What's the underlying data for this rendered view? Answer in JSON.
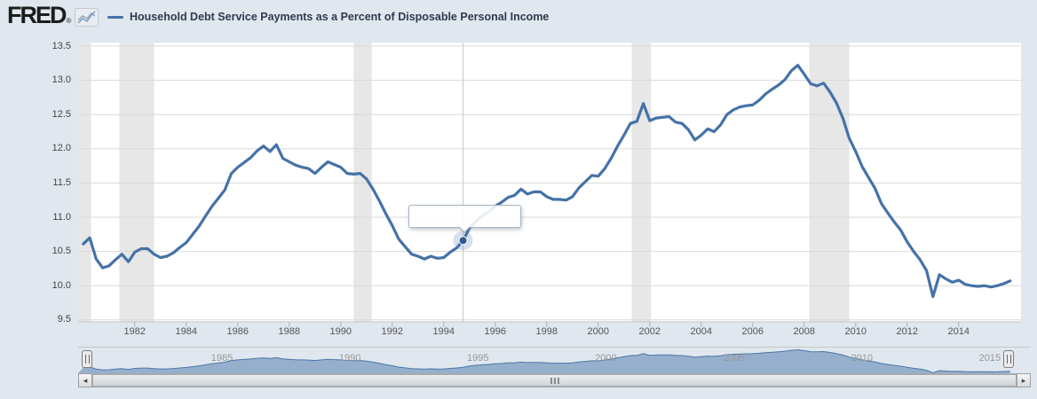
{
  "header": {
    "logo_text": "FRED",
    "registered_mark": "®",
    "sparkline_icon": "fred-graph-icon"
  },
  "legend": {
    "marker": "line-dash",
    "label": "Household Debt Service Payments as a Percent of Disposable Personal Income"
  },
  "colors": {
    "page_background": "#e0e7ee",
    "plot_background": "#ffffff",
    "series_line": "#4572a7",
    "gridline": "#d9d9d9",
    "recession_band": "#e7e7e7",
    "crosshair": "#c8c8c8",
    "marker_dot": "#2e5a8f",
    "marker_halo": "rgba(69,114,167,0.22)",
    "navigator_fill": "rgba(69,114,167,0.48)",
    "navigator_line": "#4a76a8",
    "axis_line": "#c2c6ca"
  },
  "tooltip": {
    "visible": true,
    "text": ""
  },
  "scrollbar": {
    "left_arrow": "◂",
    "right_arrow": "▸"
  },
  "chart_data": {
    "type": "line",
    "title": "Household Debt Service Payments as a Percent of Disposable Personal Income",
    "xlabel": "",
    "ylabel": "",
    "ylim": [
      9.5,
      13.5
    ],
    "grid": true,
    "legend_position": "top",
    "y_ticks": [
      "13.5",
      "13.0",
      "12.5",
      "12.0",
      "11.5",
      "11.0",
      "10.5",
      "10.0",
      "9.5"
    ],
    "y_tick_values": [
      13.5,
      13.0,
      12.5,
      12.0,
      11.5,
      11.0,
      10.5,
      10.0,
      9.5
    ],
    "x_ticks": [
      1982,
      1984,
      1986,
      1988,
      1990,
      1992,
      1994,
      1996,
      1998,
      2000,
      2002,
      2004,
      2006,
      2008,
      2010,
      2012,
      2014
    ],
    "navigator_ticks": [
      1985,
      1990,
      1995,
      2000,
      2005,
      2010,
      2015
    ],
    "frequency": "quarterly",
    "start_year": 1980,
    "recession_bands_years": [
      [
        1979.8,
        1980.3
      ],
      [
        1981.4,
        1982.75
      ],
      [
        1990.5,
        1991.2
      ],
      [
        2001.3,
        2002.05
      ],
      [
        2008.2,
        2009.75
      ]
    ],
    "highlight": {
      "year": 1994.75,
      "value": 10.66
    },
    "series": [
      {
        "name": "Household Debt Service Payments as a Percent of Disposable Personal Income",
        "values": [
          10.61,
          10.7,
          10.39,
          10.26,
          10.29,
          10.38,
          10.46,
          10.35,
          10.49,
          10.54,
          10.54,
          10.46,
          10.41,
          10.43,
          10.48,
          10.56,
          10.63,
          10.75,
          10.87,
          11.02,
          11.16,
          11.28,
          11.4,
          11.64,
          11.73,
          11.8,
          11.87,
          11.97,
          12.04,
          11.96,
          12.06,
          11.86,
          11.81,
          11.76,
          11.73,
          11.71,
          11.64,
          11.73,
          11.81,
          11.77,
          11.73,
          11.64,
          11.63,
          11.64,
          11.56,
          11.41,
          11.24,
          11.05,
          10.88,
          10.68,
          10.57,
          10.46,
          10.43,
          10.39,
          10.43,
          10.4,
          10.41,
          10.49,
          10.55,
          10.66,
          10.84,
          10.94,
          11.02,
          11.08,
          11.16,
          11.22,
          11.29,
          11.32,
          11.41,
          11.34,
          11.37,
          11.37,
          11.3,
          11.26,
          11.26,
          11.25,
          11.3,
          11.43,
          11.52,
          11.61,
          11.6,
          11.71,
          11.86,
          12.04,
          12.2,
          12.37,
          12.4,
          12.66,
          12.41,
          12.45,
          12.46,
          12.47,
          12.39,
          12.37,
          12.28,
          12.13,
          12.2,
          12.29,
          12.25,
          12.35,
          12.5,
          12.57,
          12.61,
          12.63,
          12.64,
          12.71,
          12.8,
          12.87,
          12.93,
          13.01,
          13.14,
          13.22,
          13.09,
          12.95,
          12.92,
          12.96,
          12.83,
          12.67,
          12.45,
          12.15,
          11.96,
          11.74,
          11.58,
          11.42,
          11.2,
          11.06,
          10.93,
          10.81,
          10.64,
          10.5,
          10.38,
          10.22,
          9.84,
          10.16,
          10.1,
          10.05,
          10.08,
          10.02,
          10.0,
          9.99,
          10.0,
          9.98,
          10.0,
          10.03,
          10.07
        ]
      }
    ]
  }
}
